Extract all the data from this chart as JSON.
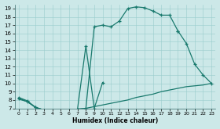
{
  "xlabel": "Humidex (Indice chaleur)",
  "bg_color": "#cce8e8",
  "line_color": "#1a7a6e",
  "ylim": [
    7,
    19.5
  ],
  "xlim": [
    -0.5,
    23.5
  ],
  "yticks": [
    7,
    8,
    9,
    10,
    11,
    12,
    13,
    14,
    15,
    16,
    17,
    18,
    19
  ],
  "xticks": [
    0,
    1,
    2,
    3,
    4,
    5,
    6,
    7,
    8,
    9,
    10,
    11,
    12,
    13,
    14,
    15,
    16,
    17,
    18,
    19,
    20,
    21,
    22,
    23
  ],
  "series_A_x": [
    0,
    1,
    2,
    3,
    4,
    5,
    6,
    7,
    8,
    9,
    10,
    11,
    12,
    13,
    14,
    15,
    16,
    17,
    18,
    19
  ],
  "series_A_y": [
    8.3,
    7.9,
    7.1,
    6.8,
    6.7,
    6.7,
    6.8,
    6.9,
    7.0,
    16.8,
    17.0,
    16.8,
    17.5,
    19.0,
    19.2,
    19.1,
    18.7,
    18.2,
    18.2,
    16.3
  ],
  "series_B_x": [
    0,
    1,
    2,
    3,
    4,
    5,
    6,
    7,
    8,
    9,
    10,
    19,
    20,
    21,
    22,
    23
  ],
  "series_B_y": [
    8.2,
    7.8,
    7.1,
    6.8,
    6.7,
    6.7,
    6.8,
    6.9,
    14.5,
    7.0,
    10.1,
    16.3,
    14.8,
    12.3,
    11.0,
    10.0
  ],
  "series_B_split": 11,
  "series_C_x": [
    0,
    1,
    2,
    3,
    4,
    5,
    6,
    7,
    8,
    9,
    10,
    11,
    12,
    13,
    14,
    15,
    16,
    17,
    18,
    19,
    20,
    21,
    22,
    23
  ],
  "series_C_y": [
    8.1,
    7.8,
    7.1,
    6.8,
    6.7,
    6.7,
    6.8,
    6.9,
    7.0,
    7.2,
    7.4,
    7.6,
    7.8,
    8.0,
    8.3,
    8.5,
    8.7,
    9.0,
    9.2,
    9.4,
    9.6,
    9.7,
    9.8,
    10.0
  ]
}
